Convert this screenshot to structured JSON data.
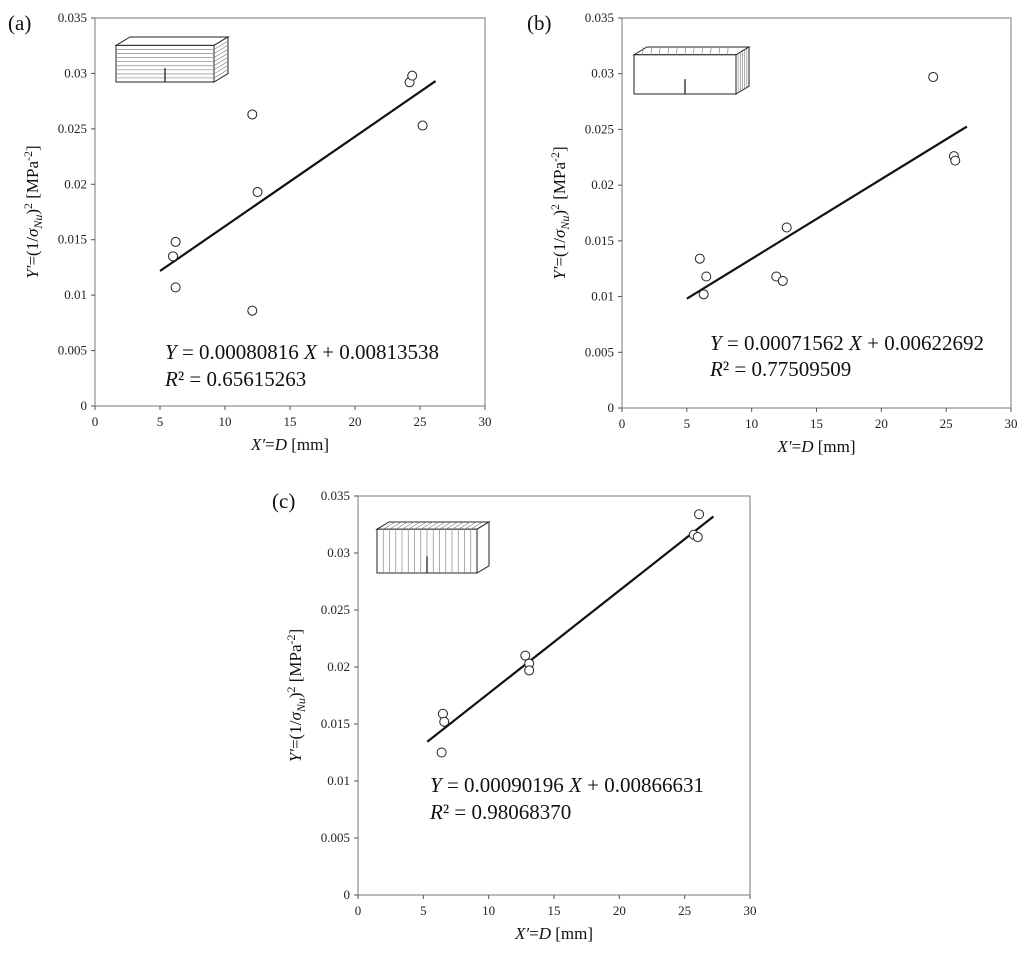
{
  "chart_data": [
    {
      "id": "a",
      "type": "scatter",
      "panel_label": "(a)",
      "specimen": "horizontal-layers",
      "xlim": [
        0,
        30
      ],
      "ylim": [
        0,
        0.035
      ],
      "x_ticks": [
        "0",
        "5",
        "10",
        "15",
        "20",
        "25",
        "30"
      ],
      "y_ticks": [
        "0",
        "0.005",
        "0.01",
        "0.015",
        "0.02",
        "0.025",
        "0.03",
        "0.035"
      ],
      "xlabel_parts": [
        "X′",
        "=",
        "D",
        " [mm]"
      ],
      "ylabel_parts": [
        "Y′",
        "=(1/",
        "σ",
        "Nu",
        ")",
        "2",
        " [MPa",
        "-2",
        "]"
      ],
      "points": [
        {
          "x": 6.0,
          "y": 0.0135
        },
        {
          "x": 6.2,
          "y": 0.0148
        },
        {
          "x": 6.2,
          "y": 0.0107
        },
        {
          "x": 12.1,
          "y": 0.0263
        },
        {
          "x": 12.5,
          "y": 0.0193
        },
        {
          "x": 12.1,
          "y": 0.0086
        },
        {
          "x": 24.2,
          "y": 0.0292
        },
        {
          "x": 24.4,
          "y": 0.0298
        },
        {
          "x": 25.2,
          "y": 0.0253
        }
      ],
      "fit": {
        "slope": 0.00080816,
        "intercept": 0.00813538,
        "x_range": [
          5.0,
          26.2
        ]
      },
      "equation_parts": [
        "Y",
        " = 0.00080816 ",
        "X",
        " + 0.00813538"
      ],
      "r2_parts": [
        "R",
        "² = 0.65615263"
      ]
    },
    {
      "id": "b",
      "type": "scatter",
      "panel_label": "(b)",
      "specimen": "vertical-layers-side",
      "xlim": [
        0,
        30
      ],
      "ylim": [
        0,
        0.035
      ],
      "x_ticks": [
        "0",
        "5",
        "10",
        "15",
        "20",
        "25",
        "30"
      ],
      "y_ticks": [
        "0",
        "0.005",
        "0.01",
        "0.015",
        "0.02",
        "0.025",
        "0.03",
        "0.035"
      ],
      "xlabel_parts": [
        "X′",
        "=",
        "D",
        " [mm]"
      ],
      "ylabel_parts": [
        "Y′",
        "=(1/",
        "σ",
        "Nu",
        ")",
        "2",
        " [MPa",
        "-2",
        "]"
      ],
      "points": [
        {
          "x": 6.0,
          "y": 0.0134
        },
        {
          "x": 6.5,
          "y": 0.0118
        },
        {
          "x": 6.3,
          "y": 0.0102
        },
        {
          "x": 11.9,
          "y": 0.0118
        },
        {
          "x": 12.4,
          "y": 0.0114
        },
        {
          "x": 12.7,
          "y": 0.0162
        },
        {
          "x": 24.0,
          "y": 0.0297
        },
        {
          "x": 25.6,
          "y": 0.0226
        },
        {
          "x": 25.7,
          "y": 0.0222
        }
      ],
      "fit": {
        "slope": 0.00071562,
        "intercept": 0.00622692,
        "x_range": [
          5.0,
          26.6
        ]
      },
      "equation_parts": [
        "Y",
        " = 0.00071562 ",
        "X",
        " + 0.00622692"
      ],
      "r2_parts": [
        "R",
        "² = 0.77509509"
      ]
    },
    {
      "id": "c",
      "type": "scatter",
      "panel_label": "(c)",
      "specimen": "vertical-layers-front",
      "xlim": [
        0,
        30
      ],
      "ylim": [
        0,
        0.035
      ],
      "x_ticks": [
        "0",
        "5",
        "10",
        "15",
        "20",
        "25",
        "30"
      ],
      "y_ticks": [
        "0",
        "0.005",
        "0.01",
        "0.015",
        "0.02",
        "0.025",
        "0.03",
        "0.035"
      ],
      "xlabel_parts": [
        "X′",
        "=",
        "D",
        " [mm]"
      ],
      "ylabel_parts": [
        "Y′",
        "=(1/",
        "σ",
        "Nu",
        ")",
        "2",
        " [MPa",
        "-2",
        "]"
      ],
      "points": [
        {
          "x": 6.5,
          "y": 0.0159
        },
        {
          "x": 6.6,
          "y": 0.0152
        },
        {
          "x": 6.4,
          "y": 0.0125
        },
        {
          "x": 12.8,
          "y": 0.021
        },
        {
          "x": 13.1,
          "y": 0.0203
        },
        {
          "x": 13.1,
          "y": 0.0197
        },
        {
          "x": 25.7,
          "y": 0.0316
        },
        {
          "x": 26.0,
          "y": 0.0314
        },
        {
          "x": 26.1,
          "y": 0.0334
        }
      ],
      "fit": {
        "slope": 0.00090196,
        "intercept": 0.00866631,
        "x_range": [
          5.3,
          27.2
        ]
      },
      "equation_parts": [
        "Y",
        " = 0.00090196 ",
        "X",
        " + 0.00866631"
      ],
      "r2_parts": [
        "R",
        "² = 0.98068370"
      ]
    }
  ]
}
